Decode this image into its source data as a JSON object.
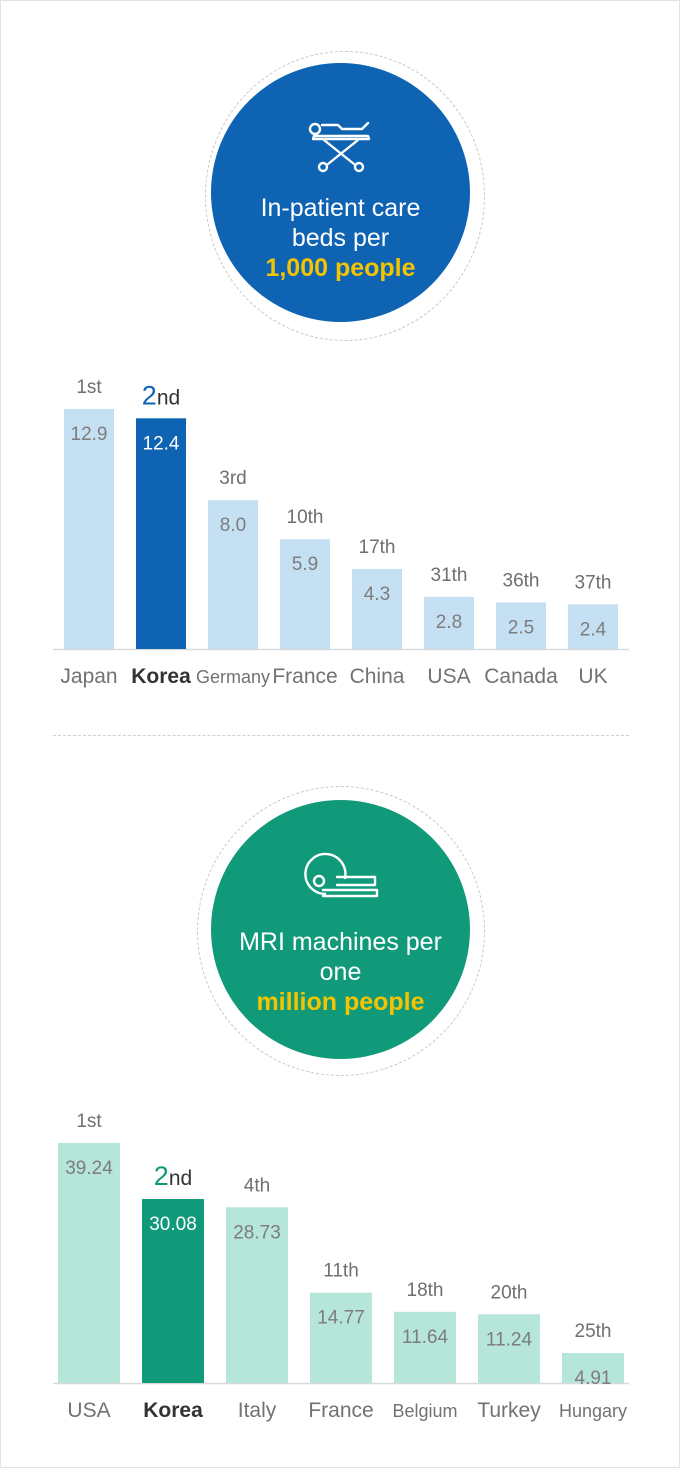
{
  "section_beds": {
    "line1": "In-patient care",
    "line2": "beds per",
    "highlight": "1,000 people",
    "icon": "hospital-bed-icon",
    "color": "#0e64b3",
    "bar_light": "#c5dff3"
  },
  "section_mri": {
    "line1": "MRI machines per",
    "line2": "one",
    "highlight": "million people",
    "icon": "mri-machine-icon",
    "color": "#119a7a",
    "bar_light": "#b6e5da"
  },
  "chart_data": [
    {
      "type": "bar",
      "categories": [
        "Japan",
        "Korea",
        "Germany",
        "France",
        "China",
        "USA",
        "Canada",
        "UK"
      ],
      "values": [
        12.9,
        12.4,
        8.0,
        5.9,
        4.3,
        2.8,
        2.5,
        2.4
      ],
      "value_labels": [
        "12.9",
        "12.4",
        "8.0",
        "5.9",
        "4.3",
        "2.8",
        "2.5",
        "2.4"
      ],
      "ranks": [
        "1st",
        "2nd",
        "3rd",
        "10th",
        "17th",
        "31th",
        "36th",
        "37th"
      ],
      "highlight_index": 1,
      "ylim": [
        0,
        12.9
      ]
    },
    {
      "type": "bar",
      "categories": [
        "USA",
        "Korea",
        "Italy",
        "France",
        "Belgium",
        "Turkey",
        "Hungary"
      ],
      "values": [
        39.24,
        30.08,
        28.73,
        14.77,
        11.64,
        11.24,
        4.91
      ],
      "value_labels": [
        "39.24",
        "30.08",
        "28.73",
        "14.77",
        "11.64",
        "11.24",
        "4.91"
      ],
      "ranks": [
        "1st",
        "2nd",
        "4th",
        "11th",
        "18th",
        "20th",
        "25th"
      ],
      "highlight_index": 1,
      "ylim": [
        0,
        39.24
      ]
    }
  ]
}
